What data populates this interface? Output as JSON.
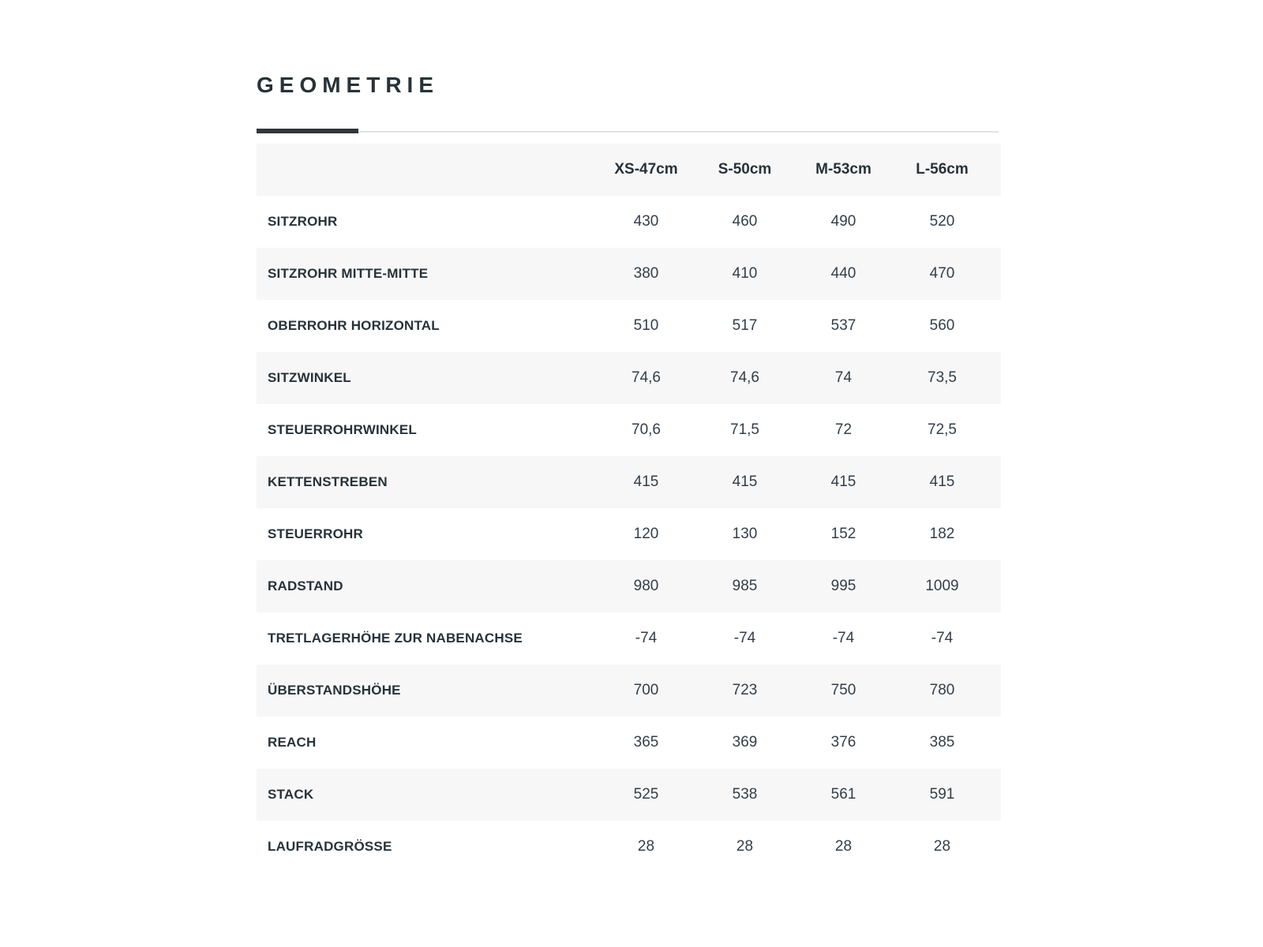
{
  "section": {
    "title": "GEOMETRIE"
  },
  "colors": {
    "accent_bar": "#303639",
    "divider_line": "#e2e2e2",
    "stripe_background": "#f7f7f7",
    "heading_text": "#273239",
    "value_text": "#333e48",
    "page_background": "#ffffff"
  },
  "table": {
    "columns": [
      "XS-47cm",
      "S-50cm",
      "M-53cm",
      "L-56cm"
    ],
    "rows": [
      {
        "label": "SITZROHR",
        "values": [
          "430",
          "460",
          "490",
          "520"
        ]
      },
      {
        "label": "SITZROHR MITTE-MITTE",
        "values": [
          "380",
          "410",
          "440",
          "470"
        ]
      },
      {
        "label": "OBERROHR HORIZONTAL",
        "values": [
          "510",
          "517",
          "537",
          "560"
        ]
      },
      {
        "label": "SITZWINKEL",
        "values": [
          "74,6",
          "74,6",
          "74",
          "73,5"
        ]
      },
      {
        "label": "STEUERROHRWINKEL",
        "values": [
          "70,6",
          "71,5",
          "72",
          "72,5"
        ]
      },
      {
        "label": "KETTENSTREBEN",
        "values": [
          "415",
          "415",
          "415",
          "415"
        ]
      },
      {
        "label": "STEUERROHR",
        "values": [
          "120",
          "130",
          "152",
          "182"
        ]
      },
      {
        "label": "RADSTAND",
        "values": [
          "980",
          "985",
          "995",
          "1009"
        ]
      },
      {
        "label": "TRETLAGERHÖHE ZUR NABENACHSE",
        "values": [
          "-74",
          "-74",
          "-74",
          "-74"
        ]
      },
      {
        "label": "ÜBERSTANDSHÖHE",
        "values": [
          "700",
          "723",
          "750",
          "780"
        ]
      },
      {
        "label": "REACH",
        "values": [
          "365",
          "369",
          "376",
          "385"
        ]
      },
      {
        "label": "STACK",
        "values": [
          "525",
          "538",
          "561",
          "591"
        ]
      },
      {
        "label": "LAUFRADGRÖSSE",
        "values": [
          "28",
          "28",
          "28",
          "28"
        ]
      }
    ]
  }
}
